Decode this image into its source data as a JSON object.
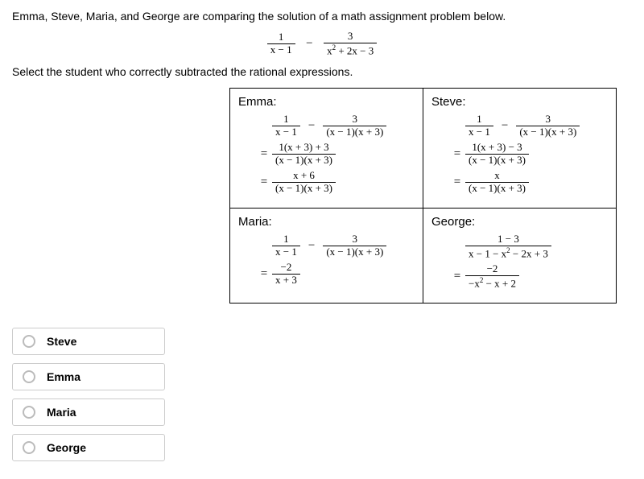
{
  "problem_intro": "Emma, Steve, Maria, and George are comparing the solution of a math assignment problem below.",
  "main_expression": {
    "left_num": "1",
    "left_den": "x − 1",
    "right_num": "3",
    "right_den_html": "x<span class='sup'>2</span> + 2x − 3"
  },
  "instruction": "Select the student who correctly subtracted the rational expressions.",
  "students": {
    "emma": {
      "name": "Emma:",
      "line1": {
        "l_num": "1",
        "l_den": "x − 1",
        "r_num": "3",
        "r_den": "(x − 1)(x + 3)"
      },
      "line2": {
        "num": "1(x + 3) + 3",
        "den": "(x − 1)(x + 3)"
      },
      "line3": {
        "num": "x + 6",
        "den": "(x − 1)(x + 3)"
      }
    },
    "steve": {
      "name": "Steve:",
      "line1": {
        "l_num": "1",
        "l_den": "x − 1",
        "r_num": "3",
        "r_den": "(x − 1)(x + 3)"
      },
      "line2": {
        "num": "1(x + 3) − 3",
        "den": "(x − 1)(x + 3)"
      },
      "line3": {
        "num": "x",
        "den": "(x − 1)(x + 3)"
      }
    },
    "maria": {
      "name": "Maria:",
      "line1": {
        "l_num": "1",
        "l_den": "x − 1",
        "r_num": "3",
        "r_den": "(x − 1)(x + 3)"
      },
      "line2": {
        "num": "−2",
        "den": "x + 3"
      }
    },
    "george": {
      "name": "George:",
      "line1": {
        "num": "1 − 3",
        "den_html": "x − 1 − x<span class='sup'>2</span> − 2x + 3"
      },
      "line2": {
        "num": "−2",
        "den_html": "−x<span class='sup'>2</span> − x + 2"
      }
    }
  },
  "answers": [
    "Steve",
    "Emma",
    "Maria",
    "George"
  ],
  "colors": {
    "border": "#000000",
    "option_border": "#cccccc",
    "radio_border": "#bbbbbb"
  }
}
